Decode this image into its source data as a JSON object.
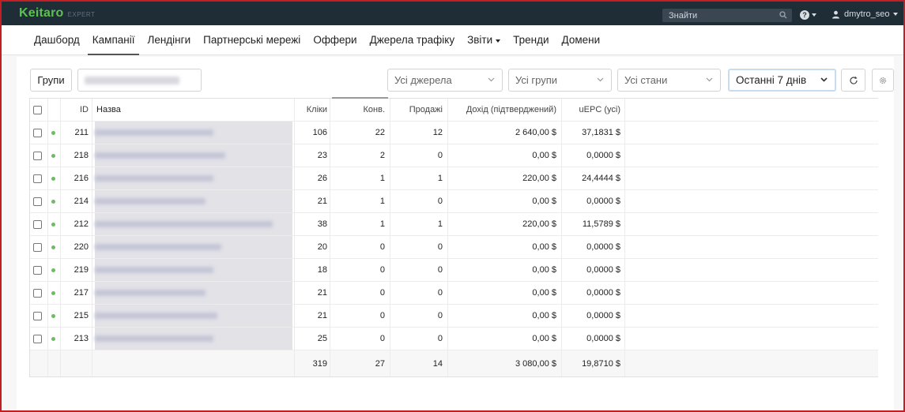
{
  "topbar": {
    "logo_text": "Keitaro",
    "edition": "EXPERT",
    "search_placeholder": "Знайти",
    "help_icon": "?",
    "username": "dmytro_seo"
  },
  "nav": {
    "items": [
      {
        "label": "Дашборд"
      },
      {
        "label": "Кампанії",
        "active": true
      },
      {
        "label": "Лендінги"
      },
      {
        "label": "Партнерські мережі"
      },
      {
        "label": "Оффери"
      },
      {
        "label": "Джерела трафіку"
      },
      {
        "label": "Звіти",
        "dropdown": true
      },
      {
        "label": "Тренди"
      },
      {
        "label": "Домени"
      }
    ]
  },
  "toolbar": {
    "groups_label": "Групи",
    "sources_select": "Усі джерела",
    "groups_select": "Усі групи",
    "states_select": "Усі стани",
    "period_select": "Останні 7 днів"
  },
  "table": {
    "headers": {
      "id": "ID",
      "name": "Назва",
      "clicks": "Кліки",
      "conversions": "Конв.",
      "sales": "Продажі",
      "revenue": "Дохід (підтверджений)",
      "epc": "uEPC (усі)"
    },
    "rows": [
      {
        "id": "211",
        "clicks": "106",
        "conversions": "22",
        "sales": "12",
        "revenue": "2 640,00 $",
        "epc": "37,1831 $"
      },
      {
        "id": "218",
        "clicks": "23",
        "conversions": "2",
        "sales": "0",
        "revenue": "0,00 $",
        "epc": "0,0000 $"
      },
      {
        "id": "216",
        "clicks": "26",
        "conversions": "1",
        "sales": "1",
        "revenue": "220,00 $",
        "epc": "24,4444 $"
      },
      {
        "id": "214",
        "clicks": "21",
        "conversions": "1",
        "sales": "0",
        "revenue": "0,00 $",
        "epc": "0,0000 $"
      },
      {
        "id": "212",
        "clicks": "38",
        "conversions": "1",
        "sales": "1",
        "revenue": "220,00 $",
        "epc": "11,5789 $"
      },
      {
        "id": "220",
        "clicks": "20",
        "conversions": "0",
        "sales": "0",
        "revenue": "0,00 $",
        "epc": "0,0000 $"
      },
      {
        "id": "219",
        "clicks": "18",
        "conversions": "0",
        "sales": "0",
        "revenue": "0,00 $",
        "epc": "0,0000 $"
      },
      {
        "id": "217",
        "clicks": "21",
        "conversions": "0",
        "sales": "0",
        "revenue": "0,00 $",
        "epc": "0,0000 $"
      },
      {
        "id": "215",
        "clicks": "21",
        "conversions": "0",
        "sales": "0",
        "revenue": "0,00 $",
        "epc": "0,0000 $"
      },
      {
        "id": "213",
        "clicks": "25",
        "conversions": "0",
        "sales": "0",
        "revenue": "0,00 $",
        "epc": "0,0000 $"
      }
    ],
    "totals": {
      "clicks": "319",
      "conversions": "27",
      "sales": "14",
      "revenue": "3 080,00 $",
      "epc": "19,8710 $"
    }
  },
  "colors": {
    "accent": "#5cc24f",
    "topbar": "#1f2d37",
    "active_dot": "#6cbd62",
    "frame": "#c21f24"
  }
}
